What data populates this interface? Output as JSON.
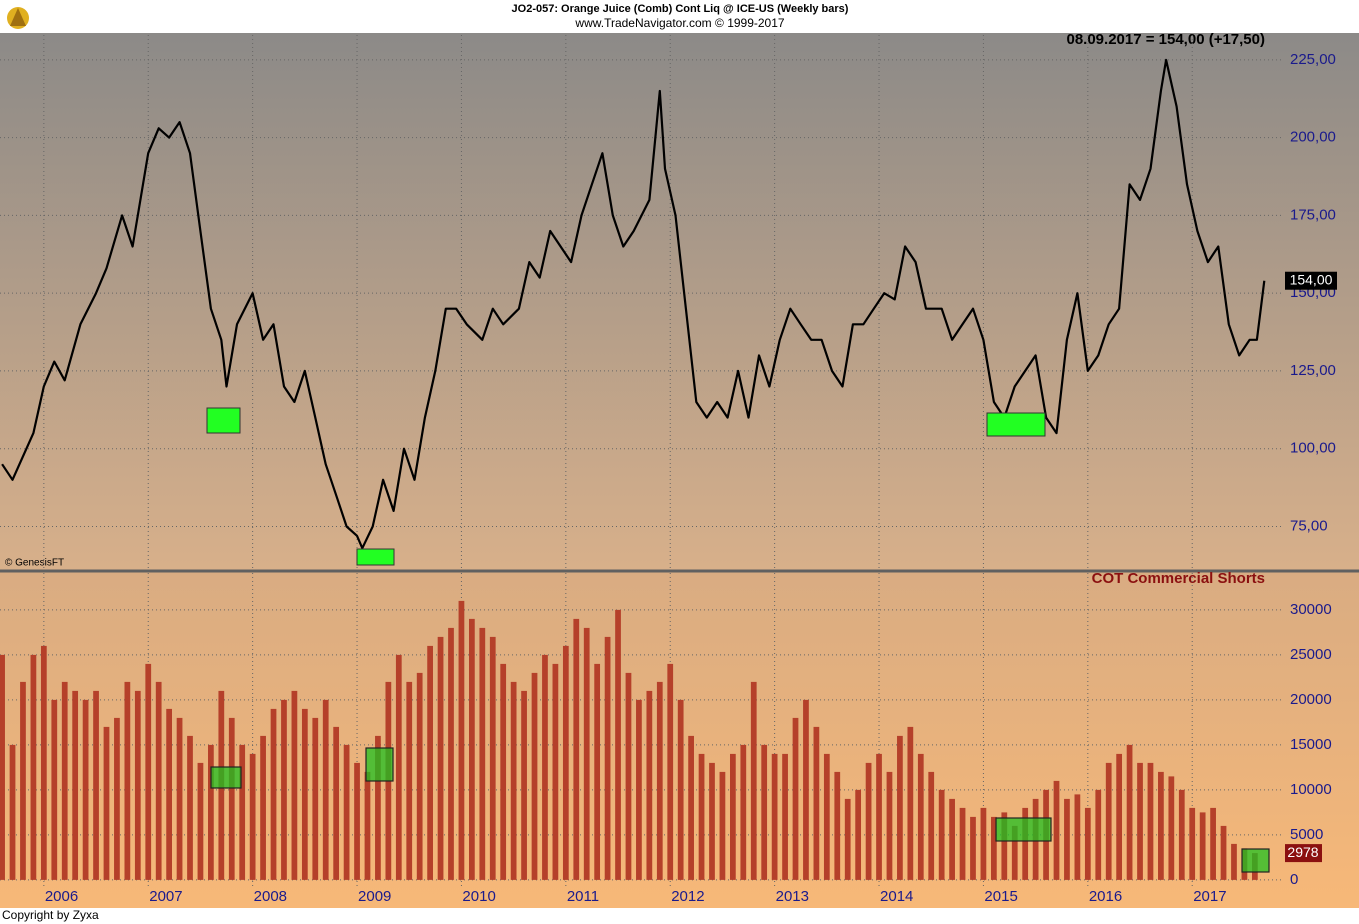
{
  "header": {
    "title": "JO2-057:  Orange Juice (Comb) Cont Liq @ ICE-US  (Weekly bars)",
    "subtitle": "www.TradeNavigator.com © 1999-2017"
  },
  "footer": "Copyright by Zyxa",
  "chart_data": [
    {
      "type": "line",
      "annotation": "08.09.2017 = 154,00 (+17,50)",
      "source": "© GenesisFT",
      "price_tag": "154,00",
      "color": "#000000",
      "grid": true,
      "xlim": [
        2005.58,
        2017.86
      ],
      "ylim": [
        61,
        233
      ],
      "xticks": [
        2006,
        2007,
        2008,
        2009,
        2010,
        2011,
        2012,
        2013,
        2014,
        2015,
        2016,
        2017
      ],
      "yticks": [
        {
          "value": 75,
          "label": "75,00"
        },
        {
          "value": 100,
          "label": "100,00"
        },
        {
          "value": 125,
          "label": "125,00"
        },
        {
          "value": 150,
          "label": "150,00"
        },
        {
          "value": 175,
          "label": "175,00"
        },
        {
          "value": 200,
          "label": "200,00"
        },
        {
          "value": 225,
          "label": "225,00"
        }
      ],
      "x": [
        2005.6,
        2005.7,
        2005.9,
        2006.0,
        2006.1,
        2006.2,
        2006.35,
        2006.5,
        2006.6,
        2006.75,
        2006.85,
        2007.0,
        2007.1,
        2007.2,
        2007.3,
        2007.4,
        2007.5,
        2007.6,
        2007.7,
        2007.75,
        2007.85,
        2008.0,
        2008.1,
        2008.2,
        2008.3,
        2008.4,
        2008.5,
        2008.6,
        2008.7,
        2008.8,
        2008.9,
        2009.0,
        2009.05,
        2009.15,
        2009.25,
        2009.35,
        2009.45,
        2009.55,
        2009.65,
        2009.75,
        2009.85,
        2009.95,
        2010.05,
        2010.2,
        2010.3,
        2010.4,
        2010.55,
        2010.65,
        2010.75,
        2010.85,
        2010.95,
        2011.05,
        2011.15,
        2011.25,
        2011.35,
        2011.45,
        2011.55,
        2011.65,
        2011.8,
        2011.9,
        2011.95,
        2012.05,
        2012.15,
        2012.25,
        2012.35,
        2012.45,
        2012.55,
        2012.65,
        2012.75,
        2012.85,
        2012.95,
        2013.05,
        2013.15,
        2013.25,
        2013.35,
        2013.45,
        2013.55,
        2013.65,
        2013.75,
        2013.85,
        2013.95,
        2014.05,
        2014.15,
        2014.25,
        2014.35,
        2014.45,
        2014.6,
        2014.7,
        2014.8,
        2014.9,
        2015.0,
        2015.1,
        2015.2,
        2015.3,
        2015.4,
        2015.5,
        2015.6,
        2015.7,
        2015.8,
        2015.9,
        2016.0,
        2016.1,
        2016.2,
        2016.3,
        2016.4,
        2016.5,
        2016.6,
        2016.7,
        2016.75,
        2016.85,
        2016.95,
        2017.05,
        2017.15,
        2017.25,
        2017.35,
        2017.45,
        2017.55,
        2017.62,
        2017.69
      ],
      "values": [
        95,
        90,
        105,
        120,
        128,
        122,
        140,
        150,
        158,
        175,
        165,
        195,
        203,
        200,
        205,
        195,
        170,
        145,
        135,
        120,
        140,
        150,
        135,
        140,
        120,
        115,
        125,
        110,
        95,
        85,
        75,
        72,
        68,
        75,
        90,
        80,
        100,
        90,
        110,
        125,
        145,
        145,
        140,
        135,
        145,
        140,
        145,
        160,
        155,
        170,
        165,
        160,
        175,
        185,
        195,
        175,
        165,
        170,
        180,
        215,
        190,
        175,
        145,
        115,
        110,
        115,
        110,
        125,
        110,
        130,
        120,
        135,
        145,
        140,
        135,
        135,
        125,
        120,
        140,
        140,
        145,
        150,
        148,
        165,
        160,
        145,
        145,
        135,
        140,
        145,
        135,
        115,
        110,
        120,
        125,
        130,
        110,
        105,
        135,
        150,
        125,
        130,
        140,
        145,
        185,
        180,
        190,
        215,
        225,
        210,
        185,
        170,
        160,
        165,
        140,
        130,
        135,
        135,
        154
      ]
    },
    {
      "type": "bar",
      "title": "COT Commercial Shorts",
      "color": "#b5402a",
      "grid": true,
      "cot_tag": 2978,
      "xlim": [
        2005.58,
        2017.86
      ],
      "ylim": [
        -900,
        34100
      ],
      "xticks": [
        2006,
        2007,
        2008,
        2009,
        2010,
        2011,
        2012,
        2013,
        2014,
        2015,
        2016,
        2017
      ],
      "yticks": [
        0,
        5000,
        10000,
        15000,
        20000,
        25000,
        30000
      ],
      "x": [
        2005.6,
        2005.7,
        2005.8,
        2005.9,
        2006.0,
        2006.1,
        2006.2,
        2006.3,
        2006.4,
        2006.5,
        2006.6,
        2006.7,
        2006.8,
        2006.9,
        2007.0,
        2007.1,
        2007.2,
        2007.3,
        2007.4,
        2007.5,
        2007.6,
        2007.7,
        2007.8,
        2007.9,
        2008.0,
        2008.1,
        2008.2,
        2008.3,
        2008.4,
        2008.5,
        2008.6,
        2008.7,
        2008.8,
        2008.9,
        2009.0,
        2009.1,
        2009.2,
        2009.3,
        2009.4,
        2009.5,
        2009.6,
        2009.7,
        2009.8,
        2009.9,
        2010.0,
        2010.1,
        2010.2,
        2010.3,
        2010.4,
        2010.5,
        2010.6,
        2010.7,
        2010.8,
        2010.9,
        2011.0,
        2011.1,
        2011.2,
        2011.3,
        2011.4,
        2011.5,
        2011.6,
        2011.7,
        2011.8,
        2011.9,
        2012.0,
        2012.1,
        2012.2,
        2012.3,
        2012.4,
        2012.5,
        2012.6,
        2012.7,
        2012.8,
        2012.9,
        2013.0,
        2013.1,
        2013.2,
        2013.3,
        2013.4,
        2013.5,
        2013.6,
        2013.7,
        2013.8,
        2013.9,
        2014.0,
        2014.1,
        2014.2,
        2014.3,
        2014.4,
        2014.5,
        2014.6,
        2014.7,
        2014.8,
        2014.9,
        2015.0,
        2015.1,
        2015.2,
        2015.3,
        2015.4,
        2015.5,
        2015.6,
        2015.7,
        2015.8,
        2015.9,
        2016.0,
        2016.1,
        2016.2,
        2016.3,
        2016.4,
        2016.5,
        2016.6,
        2016.7,
        2016.8,
        2016.9,
        2017.0,
        2017.1,
        2017.2,
        2017.3,
        2017.4,
        2017.5,
        2017.6
      ],
      "values": [
        25000,
        15000,
        22000,
        25000,
        26000,
        20000,
        22000,
        21000,
        20000,
        21000,
        17000,
        18000,
        22000,
        21000,
        24000,
        22000,
        19000,
        18000,
        16000,
        13000,
        15000,
        21000,
        18000,
        15000,
        14000,
        16000,
        19000,
        20000,
        21000,
        19000,
        18000,
        20000,
        17000,
        15000,
        13000,
        12000,
        16000,
        22000,
        25000,
        22000,
        23000,
        26000,
        27000,
        28000,
        31000,
        29000,
        28000,
        27000,
        24000,
        22000,
        21000,
        23000,
        25000,
        24000,
        26000,
        29000,
        28000,
        24000,
        27000,
        30000,
        23000,
        20000,
        21000,
        22000,
        24000,
        20000,
        16000,
        14000,
        13000,
        12000,
        14000,
        15000,
        22000,
        15000,
        14000,
        14000,
        18000,
        20000,
        17000,
        14000,
        12000,
        9000,
        10000,
        13000,
        14000,
        12000,
        16000,
        17000,
        14000,
        12000,
        10000,
        9000,
        8000,
        7000,
        8000,
        7000,
        7500,
        6000,
        8000,
        9000,
        10000,
        11000,
        9000,
        9500,
        8000,
        10000,
        13000,
        14000,
        15000,
        13000,
        13000,
        12000,
        11500,
        10000,
        8000,
        7500,
        8000,
        6000,
        4000,
        3500,
        2978
      ]
    }
  ]
}
